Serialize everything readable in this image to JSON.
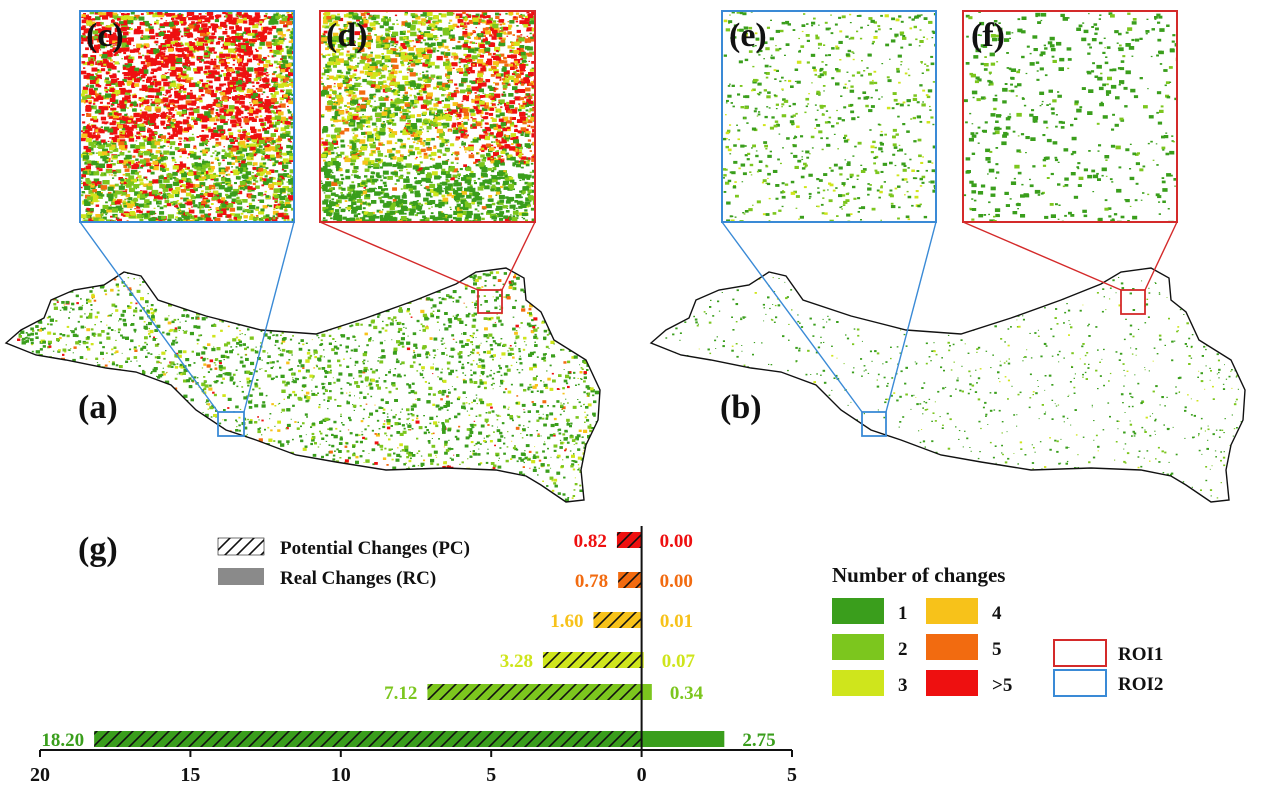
{
  "panels": {
    "a": "(a)",
    "b": "(b)",
    "c": "(c)",
    "d": "(d)",
    "e": "(e)",
    "f": "(f)",
    "g": "(g)"
  },
  "colors": {
    "c1": "#3a9e1c",
    "c2": "#7cc61e",
    "c3": "#cfe51c",
    "c4": "#f7c21a",
    "c5": "#f26b10",
    "c6": "#ee1010",
    "roi1": "#d42a2a",
    "roi2": "#3a8ad6",
    "rc": "#8a8a8a"
  },
  "legend": {
    "title": "Number of changes",
    "classes": [
      "1",
      "2",
      "3",
      "4",
      "5",
      ">5"
    ],
    "roi": [
      "ROI1",
      "ROI2"
    ]
  },
  "chart_data": {
    "type": "bar",
    "orientation": "horizontal-diverging",
    "categories": [
      "1",
      "2",
      "3",
      "4",
      "5",
      ">5"
    ],
    "series": [
      {
        "name": "Potential Changes (PC)",
        "values": [
          18.2,
          7.12,
          3.28,
          1.6,
          0.78,
          0.82
        ]
      },
      {
        "name": "Real Changes (RC)",
        "values": [
          2.75,
          0.34,
          0.07,
          0.01,
          0.0,
          0.0
        ]
      }
    ],
    "value_labels_pc": [
      "18.20",
      "7.12",
      "3.28",
      "1.60",
      "0.78",
      "0.82"
    ],
    "value_labels_rc": [
      "2.75",
      "0.34",
      "0.07",
      "0.01",
      "0.00",
      "0.00"
    ],
    "xticks": [
      "20",
      "15",
      "10",
      "5",
      "0",
      "5"
    ],
    "xlim": [
      -20,
      5
    ],
    "legend": "top-left"
  }
}
